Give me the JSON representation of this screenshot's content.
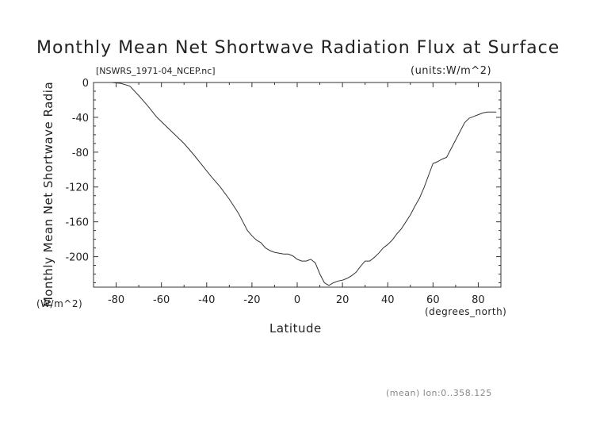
{
  "chart_data": {
    "type": "line",
    "title": "Monthly Mean Net Shortwave Radiation Flux at Surface",
    "filename": "[NSWRS_1971-04_NCEP.nc]",
    "units": "(units:W/m^2)",
    "xlabel": "Latitude",
    "xunits": "(degrees_north)",
    "ylabel": "Monthly Mean Net Shortwave Radia",
    "yunits": "(W/m^2)",
    "footer": "(mean) lon:0..358.125",
    "xlim": [
      -90,
      90
    ],
    "ylim": [
      -235,
      0
    ],
    "xticks": [
      -80,
      -60,
      -40,
      -20,
      0,
      20,
      40,
      60,
      80
    ],
    "xtick_labels": [
      "-80",
      "-60",
      "-40",
      "-20",
      "0",
      "20",
      "40",
      "60",
      "80"
    ],
    "yticks": [
      0,
      -40,
      -80,
      -120,
      -160,
      -200
    ],
    "ytick_labels": [
      "0",
      "-40",
      "-80",
      "-120",
      "-160",
      "-200"
    ],
    "series": [
      {
        "color": "#333333",
        "x": [
          -82,
          -78,
          -74,
          -70,
          -66,
          -62,
          -58,
          -54,
          -50,
          -46,
          -42,
          -38,
          -34,
          -30,
          -28,
          -26,
          -24,
          -22,
          -20,
          -18,
          -16,
          -14,
          -12,
          -10,
          -8,
          -6,
          -4,
          -2,
          0,
          2,
          4,
          6,
          8,
          10,
          12,
          14,
          16,
          18,
          20,
          22,
          24,
          26,
          28,
          30,
          32,
          34,
          36,
          38,
          40,
          42,
          44,
          46,
          48,
          50,
          52,
          54,
          56,
          58,
          60,
          62,
          64,
          66,
          68,
          70,
          72,
          74,
          76,
          78,
          80,
          82,
          84,
          86,
          88
        ],
        "y": [
          0,
          -1,
          -4,
          -15,
          -27,
          -40,
          -50,
          -60,
          -70,
          -82,
          -95,
          -108,
          -120,
          -134,
          -142,
          -150,
          -160,
          -170,
          -176,
          -181,
          -184,
          -190,
          -193,
          -195,
          -196,
          -197,
          -197,
          -199,
          -203,
          -205,
          -205,
          -203,
          -207,
          -220,
          -230,
          -233,
          -230,
          -228,
          -227,
          -225,
          -222,
          -218,
          -211,
          -205,
          -205,
          -201,
          -196,
          -190,
          -186,
          -181,
          -174,
          -168,
          -160,
          -152,
          -142,
          -133,
          -121,
          -107,
          -93,
          -91,
          -88,
          -86,
          -76,
          -66,
          -56,
          -46,
          -41,
          -39,
          -37,
          -35,
          -34,
          -34,
          -34
        ]
      }
    ]
  }
}
